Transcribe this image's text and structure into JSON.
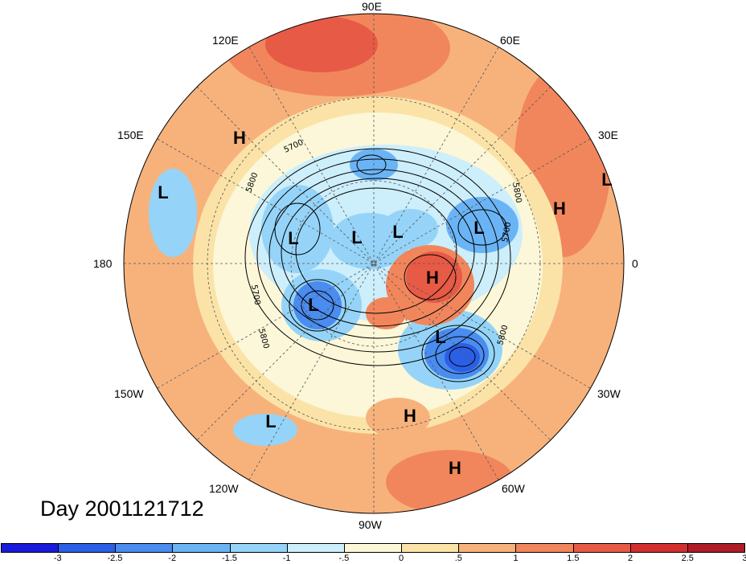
{
  "title": "Day 2001121712",
  "longitude_labels": [
    {
      "text": "90E",
      "pos": "top"
    },
    {
      "text": "60E",
      "pos": "upper-right"
    },
    {
      "text": "120E",
      "pos": "upper-left"
    },
    {
      "text": "30E",
      "pos": "right-upper"
    },
    {
      "text": "150E",
      "pos": "left-upper"
    },
    {
      "text": "0",
      "pos": "right"
    },
    {
      "text": "180",
      "pos": "left"
    },
    {
      "text": "30W",
      "pos": "right-lower"
    },
    {
      "text": "150W",
      "pos": "left-lower"
    },
    {
      "text": "60W",
      "pos": "lower-right"
    },
    {
      "text": "120W",
      "pos": "lower-left"
    },
    {
      "text": "90W",
      "pos": "bottom"
    }
  ],
  "pressure_centers": [
    {
      "type": "H",
      "label": "H"
    },
    {
      "type": "L",
      "label": "L"
    },
    {
      "type": "L",
      "label": "L"
    },
    {
      "type": "L",
      "label": "L"
    },
    {
      "type": "L",
      "label": "L"
    },
    {
      "type": "H",
      "label": "H"
    },
    {
      "type": "L",
      "label": "L"
    },
    {
      "type": "L",
      "label": "L"
    },
    {
      "type": "H",
      "label": "H"
    },
    {
      "type": "L",
      "label": "L"
    },
    {
      "type": "L",
      "label": "L"
    },
    {
      "type": "L",
      "label": "L"
    },
    {
      "type": "H",
      "label": "H"
    },
    {
      "type": "H",
      "label": "H"
    }
  ],
  "contour_labels": [
    "5700",
    "5800",
    "5700",
    "5800",
    "5800",
    "5700",
    "5800"
  ],
  "colorbar": {
    "colors": [
      "#1a1adb",
      "#2b5fe6",
      "#4a8cef",
      "#6ab4f5",
      "#95d4f8",
      "#cdeefb",
      "#fbf7d8",
      "#fbe3a8",
      "#f7b27c",
      "#f1865c",
      "#e75a45",
      "#d42f2f",
      "#b01c26"
    ],
    "ticks": [
      "-3",
      "-2.5",
      "-2",
      "-1.5",
      "-1",
      "-.5",
      "0",
      ".5",
      "1",
      "1.5",
      "2",
      "2.5",
      "3"
    ]
  }
}
